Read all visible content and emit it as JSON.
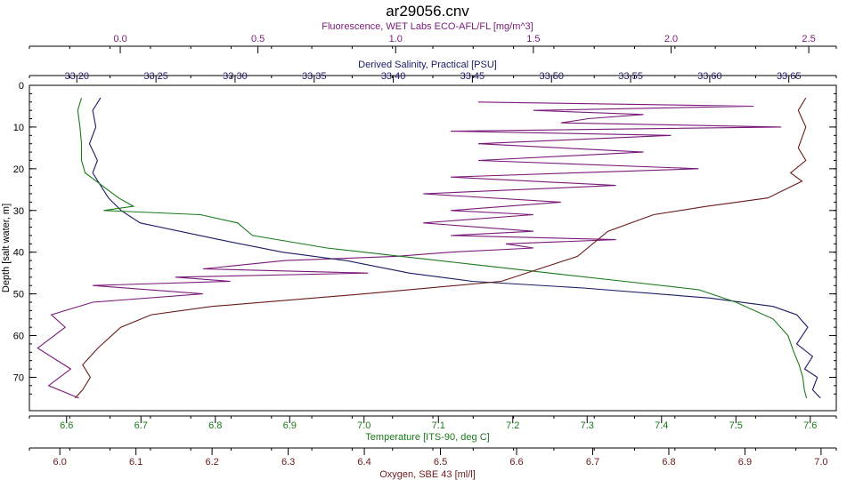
{
  "chart_data": {
    "type": "line",
    "title": "ar29056.cnv",
    "y_axis": {
      "label": "Depth [salt water, m]",
      "range": [
        0,
        78
      ],
      "ticks": [
        0,
        10,
        20,
        30,
        40,
        50,
        60,
        70
      ],
      "inverted": true
    },
    "x_axes": [
      {
        "id": "fluor",
        "label": "Fluorescence, WET Labs ECO-AFL/FL [mg/m^3]",
        "position": "top",
        "range": [
          -0.33,
          2.6
        ],
        "ticks": [
          "0.0",
          "0.5",
          "1.0",
          "1.5",
          "2.0",
          "2.5"
        ],
        "color": "#7a1a7a"
      },
      {
        "id": "sal",
        "label": "Derived Salinity, Practical [PSU]",
        "position": "top",
        "range": [
          33.17,
          33.68
        ],
        "ticks": [
          "33.20",
          "33.25",
          "33.30",
          "33.35",
          "33.40",
          "33.45",
          "33.50",
          "33.55",
          "33.60",
          "33.65"
        ],
        "color": "#1a1a66"
      },
      {
        "id": "temp",
        "label": "Temperature [ITS-90, deg C]",
        "position": "bottom",
        "range": [
          6.55,
          7.635
        ],
        "ticks": [
          "6.6",
          "6.7",
          "6.8",
          "6.9",
          "7.0",
          "7.1",
          "7.2",
          "7.3",
          "7.4",
          "7.5",
          "7.6"
        ],
        "color": "#1a7a1a"
      },
      {
        "id": "oxy",
        "label": "Oxygen, SBE 43 [ml/l]",
        "position": "bottom",
        "range": [
          5.96,
          7.02
        ],
        "ticks": [
          "6.0",
          "6.1",
          "6.2",
          "6.3",
          "6.4",
          "6.5",
          "6.6",
          "6.7",
          "6.8",
          "6.9",
          "7.0"
        ],
        "color": "#6a1a1a"
      }
    ],
    "grid": false,
    "series": [
      {
        "axis": "fluor",
        "color": "#7a1a7a",
        "x": [
          1.3,
          2.3,
          1.5,
          1.9,
          1.7,
          1.6,
          2.4,
          1.2,
          2.0,
          1.3,
          1.9,
          1.3,
          2.1,
          1.2,
          1.8,
          1.1,
          1.6,
          1.2,
          1.5,
          1.1,
          1.5,
          1.2,
          1.8,
          1.4,
          1.5,
          1.2,
          1.0,
          0.6,
          0.3,
          0.9,
          0.2,
          0.4,
          -0.1,
          0.3,
          -0.1,
          -0.25,
          -0.2,
          -0.3,
          -0.18,
          -0.26,
          -0.15
        ],
        "depth": [
          4,
          5,
          6,
          7,
          8,
          9,
          10,
          11,
          12,
          14,
          16,
          18,
          20,
          22,
          24,
          26,
          28,
          30,
          31,
          33,
          35,
          36,
          37,
          38,
          39,
          40,
          41,
          42,
          44,
          45,
          46,
          47,
          48,
          50,
          52,
          55,
          58,
          63,
          68,
          72,
          75
        ]
      },
      {
        "axis": "sal",
        "color": "#1a1a66",
        "x": [
          33.215,
          33.21,
          33.212,
          33.208,
          33.213,
          33.21,
          33.215,
          33.22,
          33.228,
          33.24,
          33.29,
          33.33,
          33.37,
          33.41,
          33.45,
          33.52,
          33.6,
          33.64,
          33.655,
          33.662,
          33.655,
          33.665,
          33.66,
          33.668,
          33.665,
          33.67
        ],
        "depth": [
          3,
          6,
          10,
          14,
          18,
          21,
          24,
          27,
          30,
          33,
          37,
          40,
          42,
          45,
          47,
          48.6,
          51,
          53,
          55,
          58,
          62,
          65,
          68,
          70,
          73,
          75
        ]
      },
      {
        "axis": "temp",
        "color": "#1a7a1a",
        "x": [
          6.62,
          6.615,
          6.618,
          6.62,
          6.62,
          6.625,
          6.64,
          6.67,
          6.69,
          6.65,
          6.78,
          6.83,
          6.85,
          6.95,
          7.05,
          7.15,
          7.25,
          7.35,
          7.45,
          7.5,
          7.55,
          7.57,
          7.578,
          7.585,
          7.59,
          7.592,
          7.595
        ],
        "depth": [
          3,
          6,
          10,
          14,
          18,
          21,
          23,
          27,
          29,
          30,
          31,
          33,
          36,
          39,
          41,
          43,
          45,
          47,
          49,
          52,
          56,
          60,
          64,
          67,
          70,
          73,
          75
        ]
      },
      {
        "axis": "oxy",
        "color": "#6a1a1a",
        "x": [
          6.98,
          6.97,
          6.98,
          6.97,
          6.98,
          6.96,
          6.975,
          6.93,
          6.85,
          6.78,
          6.72,
          6.68,
          6.58,
          6.4,
          6.2,
          6.12,
          6.08,
          6.05,
          6.03,
          6.04,
          6.03,
          6.02
        ],
        "depth": [
          3,
          6,
          10,
          15,
          18,
          21,
          23,
          27,
          29,
          31,
          35,
          41,
          47,
          50,
          53,
          55,
          58,
          63,
          67,
          70,
          73,
          75
        ]
      }
    ]
  }
}
